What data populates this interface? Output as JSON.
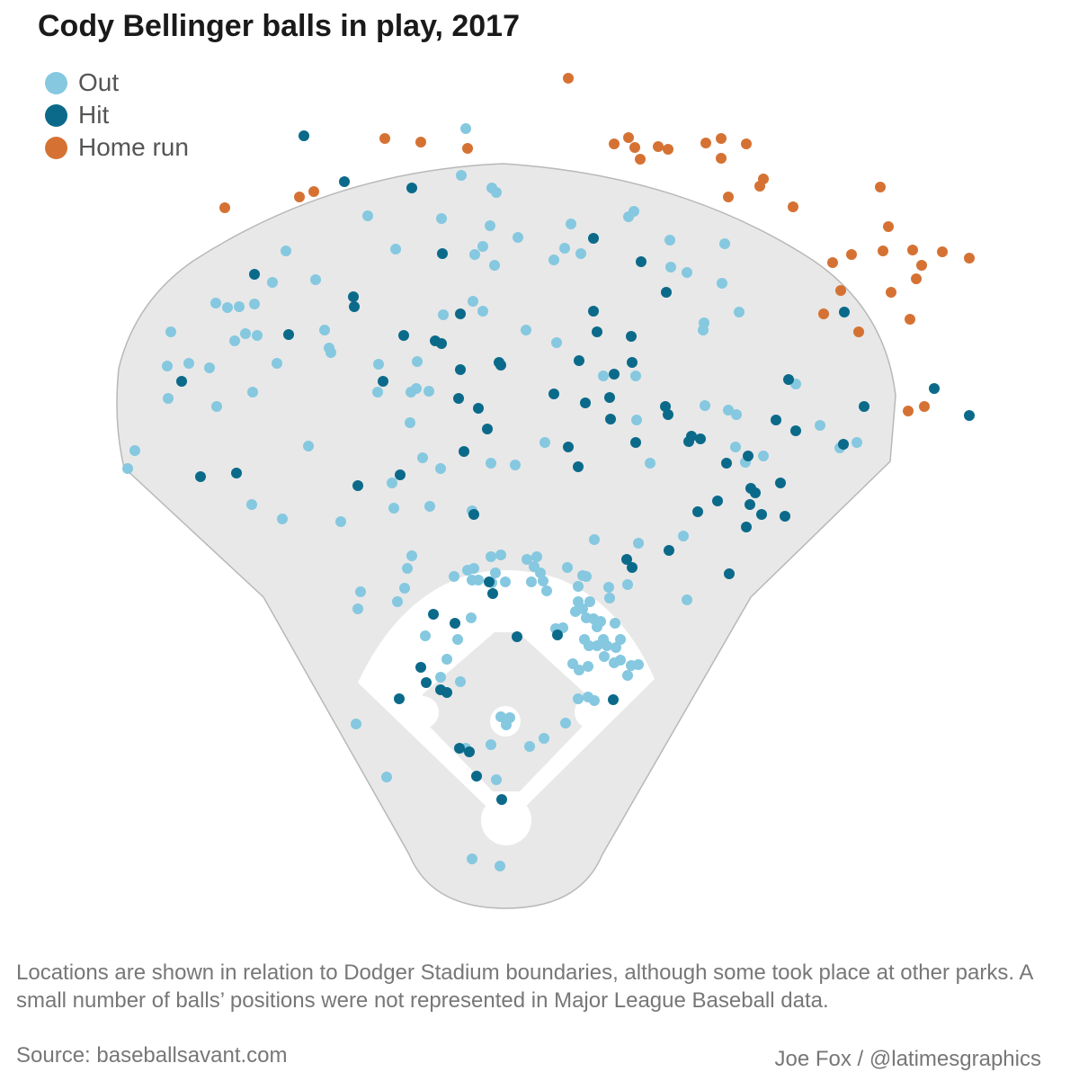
{
  "chart_data": {
    "type": "scatter",
    "title": "Cody Bellinger balls in play, 2017",
    "xlabel": "",
    "ylabel": "",
    "grid": false,
    "legend_position": "top-left",
    "colors": {
      "field": "#e8e8e8",
      "field_stroke": "#b8b8b8",
      "infield_dirt": "#ffffff"
    },
    "series": [
      {
        "name": "Out",
        "color": "#85c8e0",
        "points": [
          [
            518,
            143
          ],
          [
            513,
            195
          ],
          [
            547,
            209
          ],
          [
            552,
            214
          ],
          [
            409,
            240
          ],
          [
            491,
            243
          ],
          [
            545,
            251
          ],
          [
            635,
            249
          ],
          [
            699,
            241
          ],
          [
            705,
            235
          ],
          [
            528,
            283
          ],
          [
            537,
            274
          ],
          [
            576,
            264
          ],
          [
            616,
            289
          ],
          [
            628,
            276
          ],
          [
            646,
            282
          ],
          [
            550,
            295
          ],
          [
            745,
            267
          ],
          [
            806,
            271
          ],
          [
            746,
            297
          ],
          [
            764,
            303
          ],
          [
            318,
            279
          ],
          [
            440,
            277
          ],
          [
            351,
            311
          ],
          [
            303,
            314
          ],
          [
            240,
            337
          ],
          [
            253,
            342
          ],
          [
            266,
            341
          ],
          [
            283,
            338
          ],
          [
            526,
            335
          ],
          [
            537,
            346
          ],
          [
            493,
            350
          ],
          [
            361,
            367
          ],
          [
            366,
            387
          ],
          [
            368,
            392
          ],
          [
            190,
            369
          ],
          [
            261,
            379
          ],
          [
            273,
            371
          ],
          [
            286,
            373
          ],
          [
            186,
            407
          ],
          [
            210,
            404
          ],
          [
            233,
            409
          ],
          [
            308,
            404
          ],
          [
            421,
            405
          ],
          [
            464,
            402
          ],
          [
            420,
            436
          ],
          [
            457,
            436
          ],
          [
            463,
            432
          ],
          [
            477,
            435
          ],
          [
            281,
            436
          ],
          [
            187,
            443
          ],
          [
            241,
            452
          ],
          [
            585,
            367
          ],
          [
            619,
            381
          ],
          [
            783,
            359
          ],
          [
            782,
            367
          ],
          [
            803,
            315
          ],
          [
            822,
            347
          ],
          [
            671,
            418
          ],
          [
            707,
            418
          ],
          [
            456,
            470
          ],
          [
            606,
            492
          ],
          [
            708,
            467
          ],
          [
            784,
            451
          ],
          [
            819,
            461
          ],
          [
            885,
            427
          ],
          [
            912,
            473
          ],
          [
            953,
            492
          ],
          [
            934,
            498
          ],
          [
            818,
            497
          ],
          [
            829,
            514
          ],
          [
            849,
            507
          ],
          [
            723,
            515
          ],
          [
            150,
            501
          ],
          [
            142,
            521
          ],
          [
            343,
            496
          ],
          [
            470,
            509
          ],
          [
            490,
            521
          ],
          [
            546,
            515
          ],
          [
            573,
            517
          ],
          [
            436,
            537
          ],
          [
            438,
            565
          ],
          [
            478,
            563
          ],
          [
            280,
            561
          ],
          [
            314,
            577
          ],
          [
            379,
            580
          ],
          [
            525,
            568
          ],
          [
            661,
            600
          ],
          [
            710,
            604
          ],
          [
            760,
            596
          ],
          [
            458,
            618
          ],
          [
            453,
            632
          ],
          [
            401,
            658
          ],
          [
            398,
            677
          ],
          [
            442,
            669
          ],
          [
            450,
            654
          ],
          [
            505,
            641
          ],
          [
            520,
            634
          ],
          [
            527,
            632
          ],
          [
            546,
            619
          ],
          [
            557,
            617
          ],
          [
            586,
            622
          ],
          [
            597,
            619
          ],
          [
            594,
            630
          ],
          [
            601,
            637
          ],
          [
            631,
            631
          ],
          [
            648,
            640
          ],
          [
            652,
            641
          ],
          [
            525,
            645
          ],
          [
            532,
            645
          ],
          [
            547,
            648
          ],
          [
            551,
            637
          ],
          [
            562,
            647
          ],
          [
            591,
            647
          ],
          [
            604,
            646
          ],
          [
            608,
            657
          ],
          [
            643,
            652
          ],
          [
            643,
            669
          ],
          [
            656,
            669
          ],
          [
            677,
            653
          ],
          [
            678,
            665
          ],
          [
            698,
            650
          ],
          [
            640,
            680
          ],
          [
            648,
            677
          ],
          [
            652,
            687
          ],
          [
            660,
            688
          ],
          [
            664,
            697
          ],
          [
            668,
            691
          ],
          [
            650,
            711
          ],
          [
            655,
            718
          ],
          [
            664,
            718
          ],
          [
            671,
            711
          ],
          [
            684,
            693
          ],
          [
            675,
            718
          ],
          [
            685,
            720
          ],
          [
            690,
            711
          ],
          [
            618,
            699
          ],
          [
            626,
            698
          ],
          [
            637,
            738
          ],
          [
            644,
            745
          ],
          [
            654,
            741
          ],
          [
            672,
            730
          ],
          [
            683,
            737
          ],
          [
            690,
            734
          ],
          [
            702,
            740
          ],
          [
            698,
            751
          ],
          [
            710,
            739
          ],
          [
            524,
            687
          ],
          [
            473,
            707
          ],
          [
            509,
            711
          ],
          [
            497,
            733
          ],
          [
            490,
            753
          ],
          [
            512,
            758
          ],
          [
            643,
            777
          ],
          [
            654,
            775
          ],
          [
            661,
            779
          ],
          [
            557,
            797
          ],
          [
            563,
            806
          ],
          [
            567,
            798
          ],
          [
            629,
            804
          ],
          [
            605,
            821
          ],
          [
            589,
            830
          ],
          [
            546,
            828
          ],
          [
            518,
            832
          ],
          [
            552,
            867
          ],
          [
            525,
            955
          ],
          [
            556,
            963
          ],
          [
            396,
            805
          ],
          [
            430,
            864
          ],
          [
            764,
            667
          ],
          [
            810,
            456
          ]
        ]
      },
      {
        "name": "Hit",
        "color": "#0b6a8a",
        "points": [
          [
            338,
            151
          ],
          [
            383,
            202
          ],
          [
            458,
            209
          ],
          [
            660,
            265
          ],
          [
            492,
            282
          ],
          [
            713,
            291
          ],
          [
            283,
            305
          ],
          [
            393,
            330
          ],
          [
            394,
            341
          ],
          [
            741,
            325
          ],
          [
            512,
            349
          ],
          [
            660,
            346
          ],
          [
            321,
            372
          ],
          [
            449,
            373
          ],
          [
            484,
            379
          ],
          [
            491,
            382
          ],
          [
            664,
            369
          ],
          [
            702,
            374
          ],
          [
            202,
            424
          ],
          [
            426,
            424
          ],
          [
            512,
            411
          ],
          [
            555,
            403
          ],
          [
            557,
            406
          ],
          [
            644,
            401
          ],
          [
            703,
            403
          ],
          [
            683,
            416
          ],
          [
            616,
            438
          ],
          [
            678,
            442
          ],
          [
            651,
            448
          ],
          [
            510,
            443
          ],
          [
            532,
            454
          ],
          [
            740,
            452
          ],
          [
            743,
            461
          ],
          [
            679,
            466
          ],
          [
            877,
            422
          ],
          [
            863,
            467
          ],
          [
            885,
            479
          ],
          [
            961,
            452
          ],
          [
            1039,
            432
          ],
          [
            1078,
            462
          ],
          [
            939,
            347
          ],
          [
            542,
            477
          ],
          [
            516,
            502
          ],
          [
            632,
            497
          ],
          [
            643,
            519
          ],
          [
            707,
            492
          ],
          [
            766,
            491
          ],
          [
            769,
            485
          ],
          [
            779,
            488
          ],
          [
            808,
            515
          ],
          [
            832,
            507
          ],
          [
            938,
            494
          ],
          [
            223,
            530
          ],
          [
            263,
            526
          ],
          [
            398,
            540
          ],
          [
            445,
            528
          ],
          [
            527,
            572
          ],
          [
            776,
            569
          ],
          [
            798,
            557
          ],
          [
            835,
            543
          ],
          [
            840,
            548
          ],
          [
            868,
            537
          ],
          [
            834,
            561
          ],
          [
            847,
            572
          ],
          [
            873,
            574
          ],
          [
            830,
            586
          ],
          [
            744,
            612
          ],
          [
            697,
            622
          ],
          [
            703,
            631
          ],
          [
            811,
            638
          ],
          [
            544,
            647
          ],
          [
            548,
            660
          ],
          [
            482,
            683
          ],
          [
            506,
            693
          ],
          [
            575,
            708
          ],
          [
            620,
            706
          ],
          [
            468,
            742
          ],
          [
            474,
            759
          ],
          [
            490,
            767
          ],
          [
            497,
            770
          ],
          [
            444,
            777
          ],
          [
            682,
            778
          ],
          [
            511,
            832
          ],
          [
            522,
            836
          ],
          [
            530,
            863
          ],
          [
            558,
            889
          ]
        ]
      },
      {
        "name": "Home run",
        "color": "#d57233",
        "points": [
          [
            632,
            87
          ],
          [
            428,
            154
          ],
          [
            468,
            158
          ],
          [
            520,
            165
          ],
          [
            683,
            160
          ],
          [
            699,
            153
          ],
          [
            706,
            164
          ],
          [
            712,
            177
          ],
          [
            732,
            163
          ],
          [
            743,
            166
          ],
          [
            785,
            159
          ],
          [
            802,
            154
          ],
          [
            830,
            160
          ],
          [
            802,
            176
          ],
          [
            849,
            199
          ],
          [
            845,
            207
          ],
          [
            810,
            219
          ],
          [
            882,
            230
          ],
          [
            979,
            208
          ],
          [
            250,
            231
          ],
          [
            333,
            219
          ],
          [
            349,
            213
          ],
          [
            988,
            252
          ],
          [
            947,
            283
          ],
          [
            926,
            292
          ],
          [
            982,
            279
          ],
          [
            1015,
            278
          ],
          [
            1025,
            295
          ],
          [
            1048,
            280
          ],
          [
            1078,
            287
          ],
          [
            1019,
            310
          ],
          [
            935,
            323
          ],
          [
            991,
            325
          ],
          [
            1012,
            355
          ],
          [
            916,
            349
          ],
          [
            955,
            369
          ],
          [
            1010,
            457
          ],
          [
            1028,
            452
          ]
        ]
      }
    ],
    "note": "Locations are shown in relation to Dodger Stadium boundaries, although some took place at other parks. A small number of balls’ positions were not represented in Major League Baseball data.",
    "source": "Source: baseballsavant.com",
    "credit": "Joe Fox / @latimesgraphics"
  }
}
